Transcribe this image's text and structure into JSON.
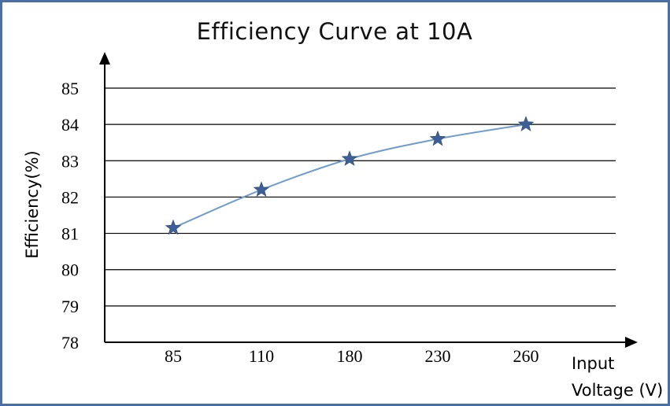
{
  "chart_data": {
    "type": "line",
    "title": "Efficiency Curve at 10A",
    "ylabel": "Efficiency(%)",
    "xlabel_line1": "Input",
    "xlabel_line2": "Voltage (V)",
    "categories": [
      "85",
      "110",
      "180",
      "230",
      "260"
    ],
    "values": [
      81.15,
      82.2,
      83.05,
      83.6,
      84.0
    ],
    "yticks": [
      78,
      79,
      80,
      81,
      82,
      83,
      84,
      85
    ],
    "ylim": [
      78,
      85
    ],
    "grid": true,
    "marker": "star",
    "colors": {
      "line": "#6f9cd0",
      "marker": "#3b5f96"
    }
  }
}
